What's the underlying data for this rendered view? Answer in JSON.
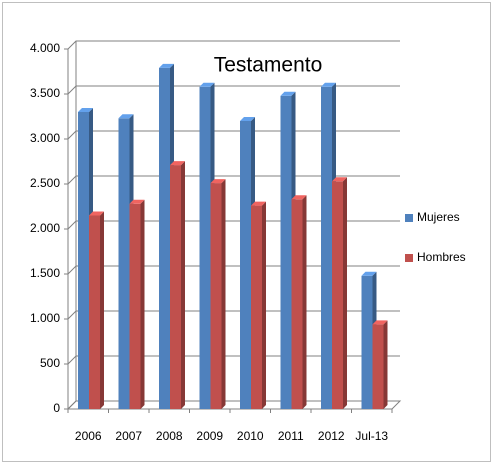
{
  "chart_data": {
    "type": "bar",
    "title": "Testamento",
    "categories": [
      "2006",
      "2007",
      "2008",
      "2009",
      "2010",
      "2011",
      "2012",
      "Jul-13"
    ],
    "series": [
      {
        "name": "Mujeres",
        "color": "#4f81bd",
        "values": [
          3300,
          3230,
          3790,
          3580,
          3200,
          3480,
          3580,
          1480
        ]
      },
      {
        "name": "Hombres",
        "color": "#c0504d",
        "values": [
          2150,
          2280,
          2710,
          2510,
          2260,
          2330,
          2530,
          940
        ]
      }
    ],
    "ylim": [
      0,
      4000
    ],
    "yticks": [
      0,
      500,
      {
        "value": 1000,
        "label": "1.000"
      },
      {
        "value": 1500,
        "label": "1.500"
      },
      {
        "value": 2000,
        "label": "2.000"
      },
      {
        "value": 2500,
        "label": "2.500"
      },
      {
        "value": 3000,
        "label": "3.000"
      },
      {
        "value": 3500,
        "label": "3.500"
      },
      {
        "value": 4000,
        "label": "4.000"
      }
    ],
    "grid": true,
    "legend": "right"
  }
}
